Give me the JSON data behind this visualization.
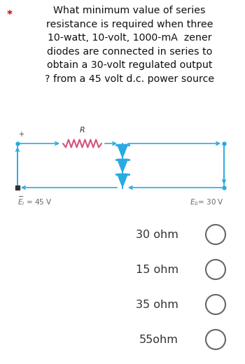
{
  "title_text": "What minimum value of series\nresistance is required when three\n10-watt, 10-volt, 1000-mA  zener\ndiodes are connected in series to\nobtain a 30-volt regulated output\n? from a 45 volt d.c. power source",
  "star_color": "#cc0000",
  "circuit_color": "#29abe2",
  "resistor_color": "#d4547a",
  "zener_color": "#29abe2",
  "label_color": "#666666",
  "options": [
    "30 ohm",
    "15 ohm",
    "35 ohm",
    "55ohm"
  ],
  "bg_color": "#ffffff",
  "title_fontsize": 10.2,
  "option_fontsize": 11.5
}
